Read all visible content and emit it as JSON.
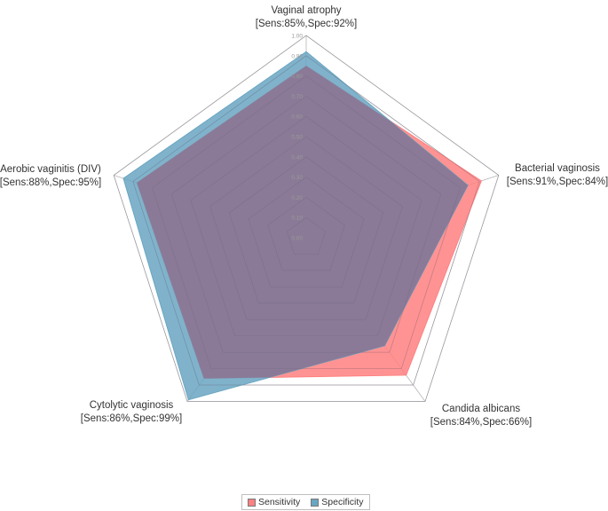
{
  "chart_data": {
    "type": "radar",
    "categories": [
      {
        "name": "Vaginal atrophy",
        "stats": "[Sens:85%,Spec:92%]"
      },
      {
        "name": "Bacterial vaginosis",
        "stats": "[Sens:91%,Spec:84%]"
      },
      {
        "name": "Candida albicans",
        "stats": "[Sens:84%,Spec:66%]"
      },
      {
        "name": "Cytolytic vaginosis",
        "stats": "[Sens:86%,Spec:99%]"
      },
      {
        "name": "Aerobic vaginitis (DIV)",
        "stats": "[Sens:88%,Spec:95%]"
      }
    ],
    "series": [
      {
        "name": "Sensitivity",
        "values": [
          0.85,
          0.91,
          0.84,
          0.86,
          0.88
        ],
        "color": "#ff8080"
      },
      {
        "name": "Specificity",
        "values": [
          0.92,
          0.84,
          0.66,
          0.99,
          0.95
        ],
        "color": "#6aa6c2"
      }
    ],
    "overlap_color": "#8a7a97",
    "r_ticks": [
      "0.00",
      "0.10",
      "0.20",
      "0.30",
      "0.40",
      "0.50",
      "0.60",
      "0.70",
      "0.80",
      "0.90",
      "1.00"
    ],
    "r_range": [
      0,
      1
    ],
    "grid": true,
    "legend_position": "bottom"
  }
}
